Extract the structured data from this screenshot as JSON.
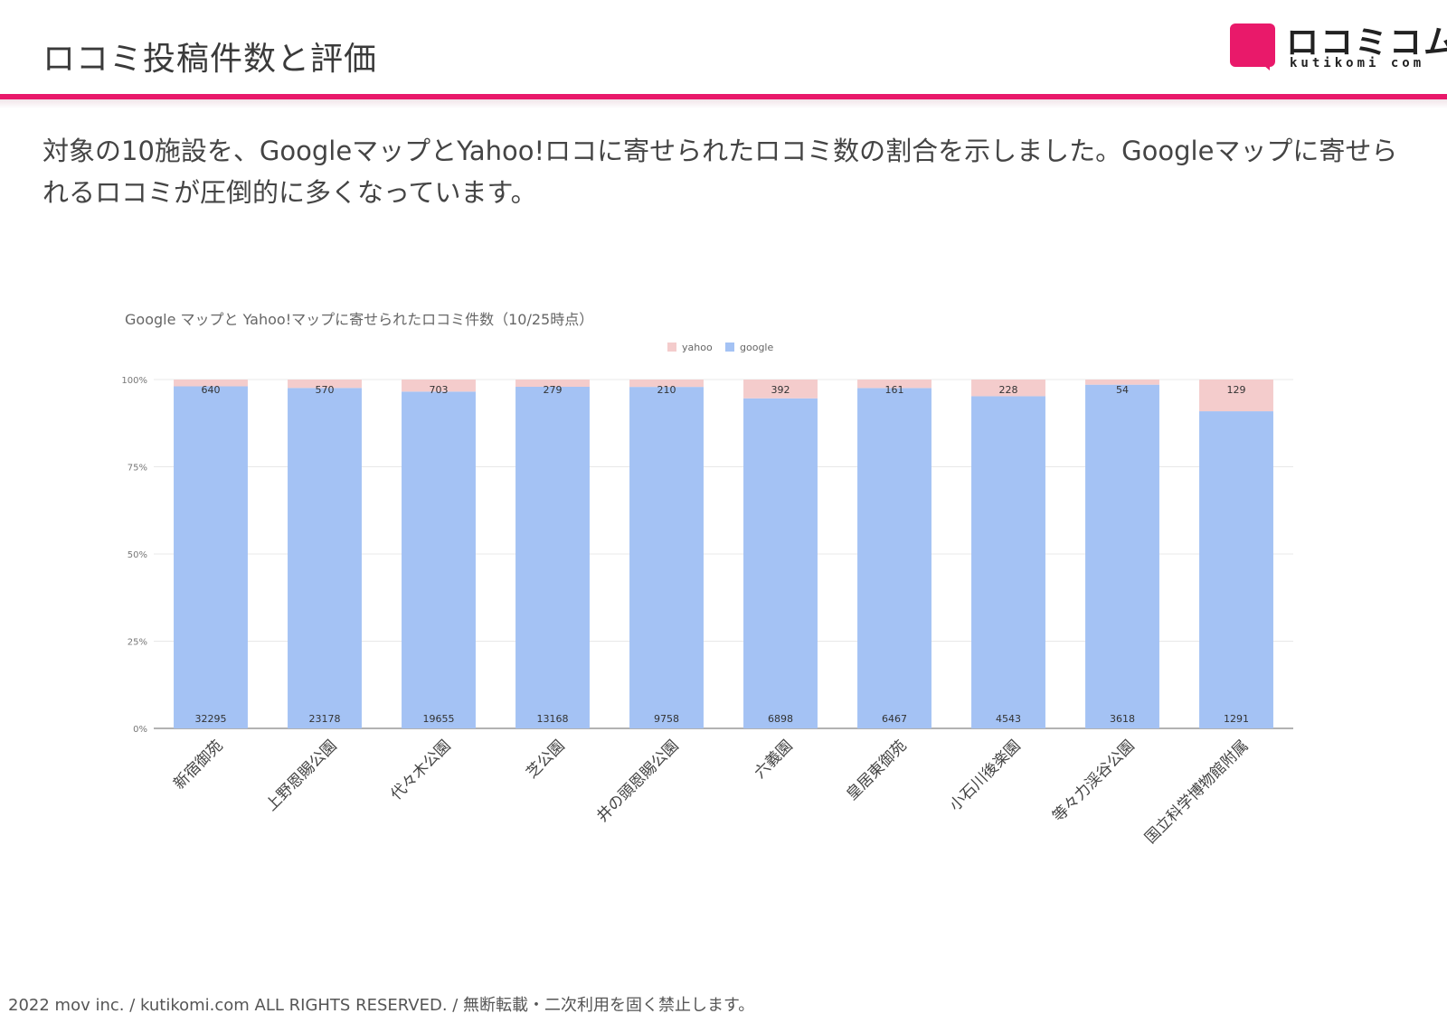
{
  "slide": {
    "title": "ロコミ投稿件数と評価",
    "intro": "対象の10施設を、GoogleマップとYahoo!ロコに寄せられたロコミ数の割合を示しました。Googleマップに寄せられるロコミが圧倒的に多くなっています。",
    "footer": "2022 mov inc. / kutikomi.com ALL RIGHTS RESERVED. / 無断転載・二次利用を固く禁止します。"
  },
  "logo": {
    "wordmark": "ロコミコム",
    "subtext": "kutikomi com",
    "color": "#e9196a"
  },
  "colors": {
    "accent": "#e9196a",
    "google": "#a4c2f4",
    "yahoo": "#f4cccc",
    "axis": "#666666",
    "grid": "#e8e8e8"
  },
  "chart_data": {
    "type": "bar",
    "stacked": "percent",
    "title": "Google マップと Yahoo!マップに寄せられたロコミ件数（10/25時点）",
    "categories": [
      "新宿御苑",
      "上野恩賜公園",
      "代々木公園",
      "芝公園",
      "井の頭恩賜公園",
      "六義園",
      "皇居東御苑",
      "小石川後楽園",
      "等々力渓谷公園",
      "国立科学博物館附属"
    ],
    "series": [
      {
        "name": "google",
        "values": [
          32295,
          23178,
          19655,
          13168,
          9758,
          6898,
          6467,
          4543,
          3618,
          1291
        ],
        "color": "#a4c2f4"
      },
      {
        "name": "yahoo",
        "values": [
          640,
          570,
          703,
          279,
          210,
          392,
          161,
          228,
          54,
          129
        ],
        "color": "#f4cccc"
      }
    ],
    "legend": {
      "items": [
        "yahoo",
        "google"
      ],
      "position": "top"
    },
    "yticks": [
      "0%",
      "25%",
      "50%",
      "75%",
      "100%"
    ],
    "ylim": [
      0,
      100
    ],
    "grid": true
  }
}
